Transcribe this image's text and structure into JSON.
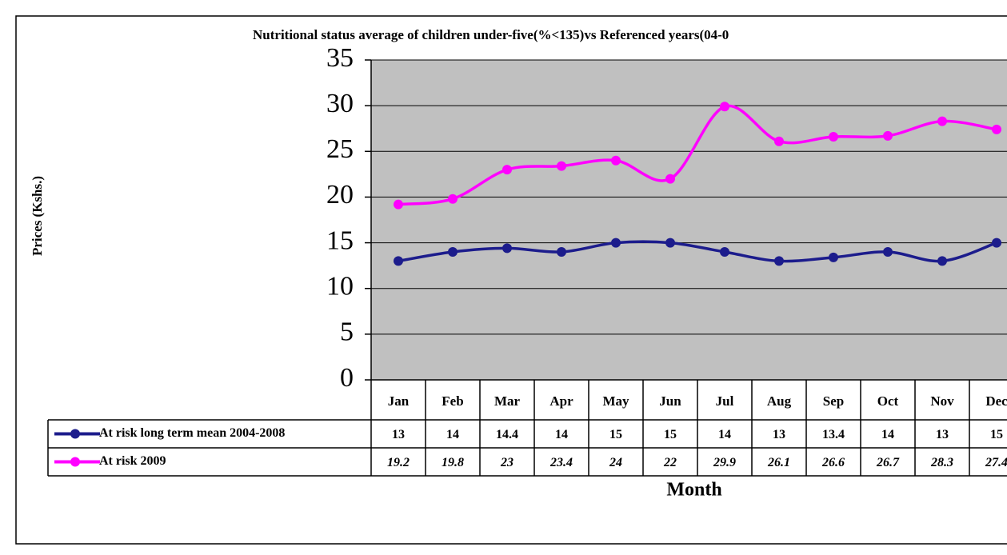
{
  "chart_data": {
    "type": "line",
    "title": "Nutritional status average of children under-five(%<135)vs Referenced years(04-0",
    "x_label": "Month",
    "y_label": "Prices (Kshs.)",
    "categories": [
      "Jan",
      "Feb",
      "Mar",
      "Apr",
      "May",
      "Jun",
      "Jul",
      "Aug",
      "Sep",
      "Oct",
      "Nov",
      "Dec"
    ],
    "series": [
      {
        "name": "At risk long term mean 2004-2008",
        "color": "#1c1c8c",
        "values": [
          13,
          14,
          14.4,
          14,
          15,
          15,
          14,
          13,
          13.4,
          14,
          13,
          15
        ]
      },
      {
        "name": "At risk 2009",
        "color": "#ff00ff",
        "values": [
          19.2,
          19.8,
          23,
          23.4,
          24,
          22,
          29.9,
          26.1,
          26.6,
          26.7,
          28.3,
          27.4
        ]
      }
    ],
    "ylim": [
      0,
      35
    ],
    "yticks": [
      0,
      5,
      10,
      15,
      20,
      25,
      30,
      35
    ],
    "grid": true,
    "plot_background": "#c0c0c0",
    "data_table": true
  }
}
